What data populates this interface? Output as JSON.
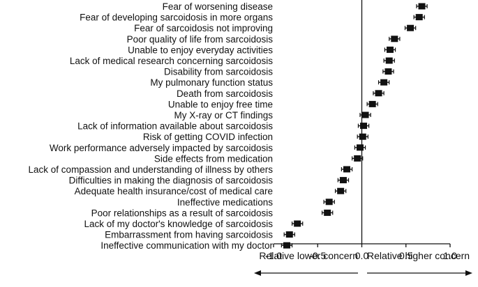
{
  "chart_data": {
    "type": "forest",
    "title": "",
    "xlabel": "",
    "ylabel": "",
    "xlim": [
      -1.0,
      1.0
    ],
    "xticks": [
      "-1.0",
      "-0.5",
      "0.0",
      "0.5",
      "1.0"
    ],
    "xtick_values": [
      -1.0,
      -0.5,
      0.0,
      0.5,
      1.0
    ],
    "reference_line": 0.0,
    "annotations": {
      "left": "Relative lower concern",
      "right": "Relative higher concern"
    },
    "categories": [
      "Fear of worsening disease",
      "Fear of developing sarcoidosis in more organs",
      "Fear of sarcoidosis not improving",
      "Poor quality of life from sarcoidosis",
      "Unable to enjoy everyday activities",
      "Lack of medical research concerning sarcoidosis",
      "Disability from sarcoidosis",
      "My pulmonary function status",
      "Death from sarcoidosis",
      "Unable to enjoy free time",
      "My X-ray or CT findings",
      "Lack of information available about sarcoidosis",
      "Risk of getting COVID infection",
      "Work performance adversely impacted by sarcoidosis",
      "Side effects from medication",
      "Lack of compassion and understanding of illness by others",
      "Difficulties in making the diagnosis of sarcoidosis",
      "Adequate health insurance/cost of medical care",
      "Ineffective medications",
      "Poor relationships as a result of sarcoidosis",
      "Lack of my doctor's knowledge of sarcoidosis",
      "Embarrassment from having sarcoidosis",
      "Ineffective communication with my doctor"
    ],
    "values": [
      0.68,
      0.65,
      0.55,
      0.37,
      0.32,
      0.31,
      0.3,
      0.25,
      0.19,
      0.12,
      0.04,
      0.02,
      0.01,
      -0.02,
      -0.05,
      -0.17,
      -0.21,
      -0.24,
      -0.37,
      -0.39,
      -0.73,
      -0.82,
      -0.85
    ],
    "ci_low": [
      0.62,
      0.59,
      0.49,
      0.31,
      0.26,
      0.25,
      0.24,
      0.19,
      0.13,
      0.06,
      -0.02,
      -0.04,
      -0.05,
      -0.08,
      -0.11,
      -0.23,
      -0.27,
      -0.3,
      -0.43,
      -0.45,
      -0.79,
      -0.88,
      -0.91
    ],
    "ci_high": [
      0.74,
      0.71,
      0.61,
      0.43,
      0.38,
      0.37,
      0.36,
      0.31,
      0.25,
      0.18,
      0.1,
      0.08,
      0.07,
      0.04,
      0.01,
      -0.11,
      -0.15,
      -0.18,
      -0.31,
      -0.33,
      -0.67,
      -0.76,
      -0.79
    ],
    "marker_color": "#111111"
  }
}
